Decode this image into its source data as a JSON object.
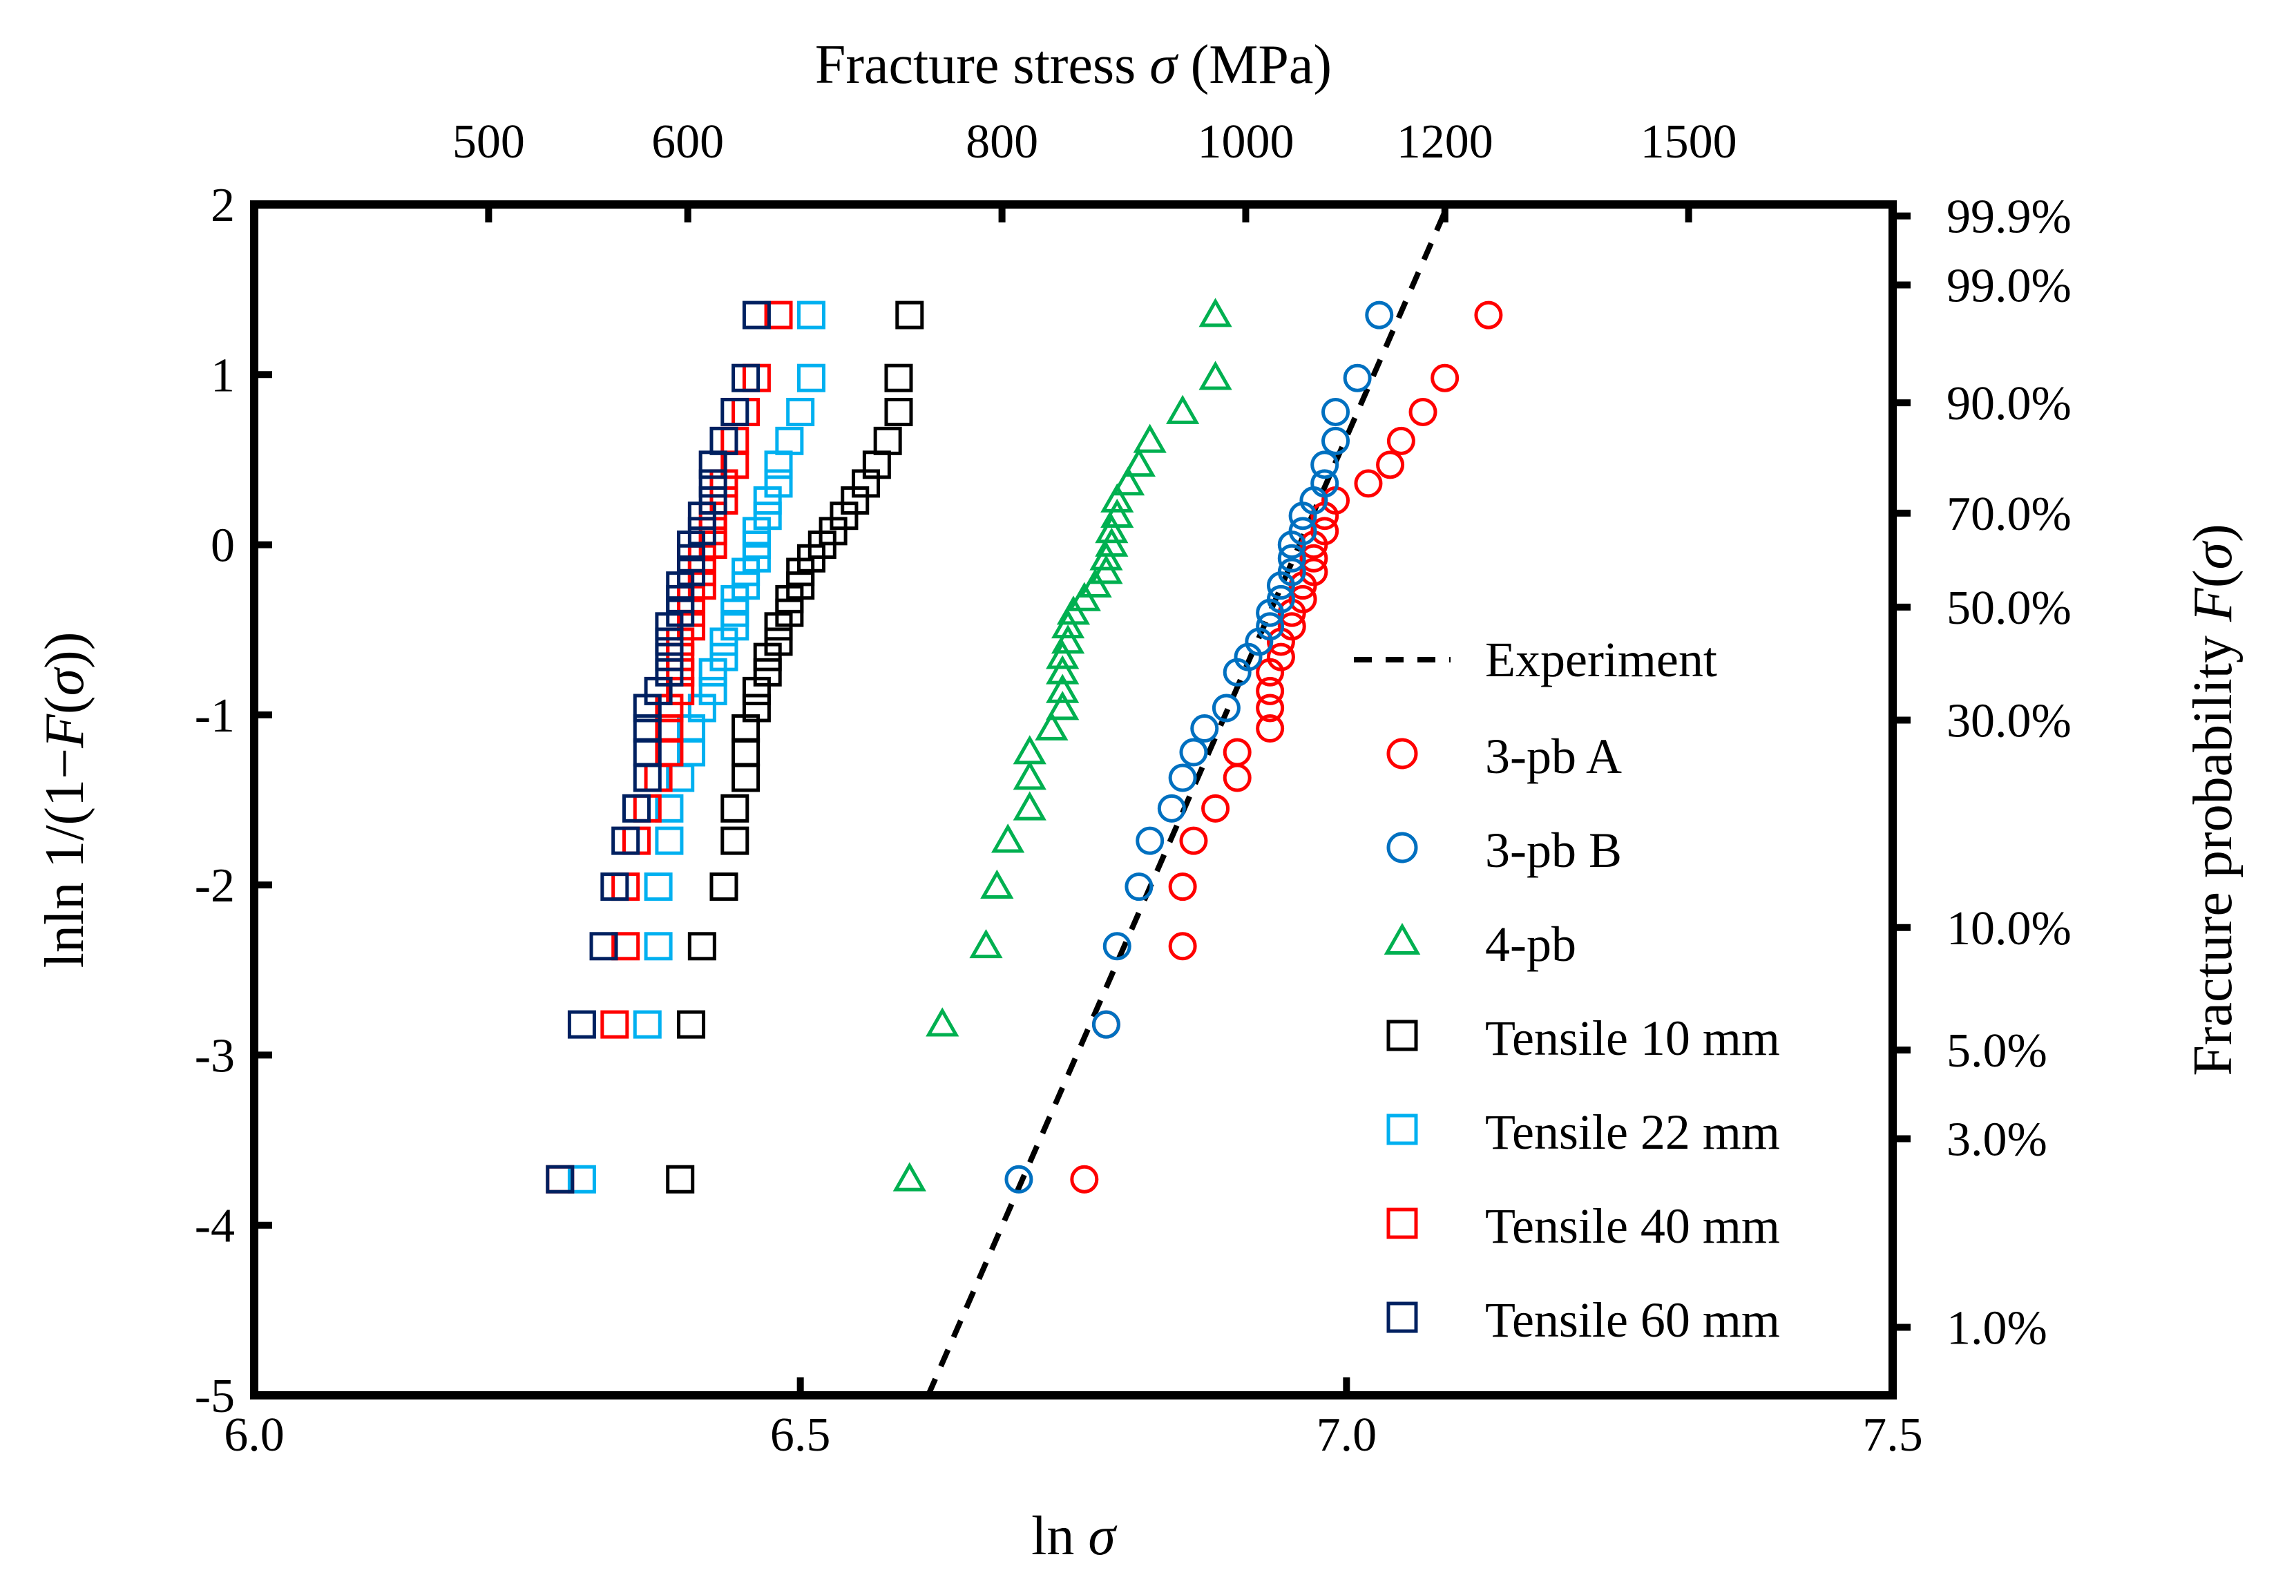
{
  "chart_data": {
    "type": "scatter",
    "xlabel": "ln σ",
    "ylabel": "lnln 1/(1−F(σ))",
    "top_xlabel": "Fracture stress σ (MPa)",
    "right_ylabel": "Fracture probability F(σ)",
    "xlim": [
      6.0,
      7.5
    ],
    "ylim": [
      -5,
      2
    ],
    "xticks": [
      "6.0",
      "6.5",
      "7.0",
      "7.5"
    ],
    "yticks": [
      "2",
      "1",
      "0",
      "-1",
      "-2",
      "-3",
      "-4",
      "-5"
    ],
    "top_ticks": [
      {
        "label": "500",
        "stress": 500
      },
      {
        "label": "600",
        "stress": 600
      },
      {
        "label": "800",
        "stress": 800
      },
      {
        "label": "1000",
        "stress": 1000
      },
      {
        "label": "1200",
        "stress": 1200
      },
      {
        "label": "1500",
        "stress": 1500
      }
    ],
    "right_ticks": [
      {
        "label": "99.9%",
        "p": 0.999
      },
      {
        "label": "99.0%",
        "p": 0.99
      },
      {
        "label": "90.0%",
        "p": 0.9
      },
      {
        "label": "70.0%",
        "p": 0.7
      },
      {
        "label": "50.0%",
        "p": 0.5
      },
      {
        "label": "30.0%",
        "p": 0.3
      },
      {
        "label": "10.0%",
        "p": 0.1
      },
      {
        "label": "5.0%",
        "p": 0.05
      },
      {
        "label": "3.0%",
        "p": 0.03
      },
      {
        "label": "1.0%",
        "p": 0.01
      }
    ],
    "grid": false,
    "legend_position": "bottom-right",
    "line_series": [
      {
        "name": "Experiment",
        "color": "#000000",
        "style": "dashed",
        "x": [
          6.617,
          7.093
        ],
        "y": [
          -5,
          2
        ]
      }
    ],
    "series": [
      {
        "name": "3-pb A",
        "marker": "circle",
        "color": "#ff0000",
        "x": [
          6.76,
          6.78,
          6.85,
          6.85,
          6.86,
          6.88,
          6.9,
          6.9,
          6.93,
          6.93,
          6.93,
          6.93,
          6.94,
          6.94,
          6.95,
          6.95,
          6.96,
          6.96,
          6.97,
          6.97,
          6.97,
          6.98,
          6.98,
          6.99,
          7.02,
          7.04,
          7.05,
          7.07,
          7.09,
          7.13
        ],
        "y": [
          -3.73,
          -2.82,
          -2.36,
          -2.01,
          -1.74,
          -1.55,
          -1.37,
          -1.22,
          -1.08,
          -0.96,
          -0.86,
          -0.75,
          -0.66,
          -0.57,
          -0.48,
          -0.4,
          -0.32,
          -0.24,
          -0.16,
          -0.08,
          0.0,
          0.08,
          0.17,
          0.26,
          0.36,
          0.47,
          0.61,
          0.78,
          0.98,
          1.35
        ]
      },
      {
        "name": "3-pb B",
        "marker": "circle",
        "color": "#0070c0",
        "x": [
          6.7,
          6.78,
          6.79,
          6.81,
          6.82,
          6.84,
          6.85,
          6.86,
          6.87,
          6.89,
          6.9,
          6.91,
          6.92,
          6.93,
          6.93,
          6.94,
          6.94,
          6.95,
          6.95,
          6.95,
          6.96,
          6.96,
          6.97,
          6.98,
          6.98,
          6.99,
          6.99,
          7.01,
          7.03
        ],
        "y": [
          -3.73,
          -2.82,
          -2.36,
          -2.01,
          -1.74,
          -1.55,
          -1.37,
          -1.22,
          -1.08,
          -0.96,
          -0.75,
          -0.66,
          -0.57,
          -0.48,
          -0.4,
          -0.32,
          -0.24,
          -0.16,
          -0.08,
          0.0,
          0.08,
          0.17,
          0.26,
          0.36,
          0.47,
          0.61,
          0.78,
          0.98,
          1.35
        ]
      },
      {
        "name": "4-pb",
        "marker": "triangle",
        "color": "#00b050",
        "x": [
          6.6,
          6.63,
          6.67,
          6.68,
          6.69,
          6.71,
          6.71,
          6.71,
          6.73,
          6.74,
          6.74,
          6.74,
          6.74,
          6.745,
          6.745,
          6.75,
          6.76,
          6.77,
          6.78,
          6.78,
          6.785,
          6.785,
          6.79,
          6.79,
          6.8,
          6.81,
          6.82,
          6.85,
          6.88,
          6.88
        ],
        "y": [
          -3.73,
          -2.82,
          -2.36,
          -2.01,
          -1.74,
          -1.55,
          -1.37,
          -1.22,
          -1.08,
          -0.96,
          -0.86,
          -0.75,
          -0.66,
          -0.57,
          -0.48,
          -0.4,
          -0.32,
          -0.24,
          -0.16,
          -0.08,
          0.0,
          0.08,
          0.17,
          0.26,
          0.36,
          0.47,
          0.61,
          0.78,
          0.98,
          1.35
        ]
      },
      {
        "name": "Tensile 10 mm",
        "marker": "square",
        "color": "#000000",
        "x": [
          6.39,
          6.4,
          6.41,
          6.43,
          6.44,
          6.44,
          6.45,
          6.45,
          6.45,
          6.46,
          6.46,
          6.47,
          6.47,
          6.48,
          6.48,
          6.49,
          6.49,
          6.5,
          6.5,
          6.51,
          6.52,
          6.53,
          6.54,
          6.55,
          6.56,
          6.57,
          6.58,
          6.59,
          6.59,
          6.6
        ],
        "y": [
          -3.73,
          -2.82,
          -2.36,
          -2.01,
          -1.74,
          -1.55,
          -1.37,
          -1.22,
          -1.08,
          -0.96,
          -0.86,
          -0.75,
          -0.66,
          -0.57,
          -0.48,
          -0.4,
          -0.32,
          -0.24,
          -0.16,
          -0.08,
          0.0,
          0.08,
          0.17,
          0.26,
          0.36,
          0.47,
          0.61,
          0.78,
          0.98,
          1.35
        ]
      },
      {
        "name": "Tensile 22 mm",
        "marker": "square",
        "color": "#00b0f0",
        "x": [
          6.3,
          6.36,
          6.37,
          6.37,
          6.38,
          6.38,
          6.39,
          6.4,
          6.4,
          6.41,
          6.42,
          6.42,
          6.43,
          6.43,
          6.44,
          6.44,
          6.44,
          6.45,
          6.45,
          6.46,
          6.46,
          6.46,
          6.47,
          6.47,
          6.48,
          6.48,
          6.49,
          6.5,
          6.51,
          6.51
        ],
        "y": [
          -3.73,
          -2.82,
          -2.36,
          -2.01,
          -1.74,
          -1.55,
          -1.37,
          -1.22,
          -1.08,
          -0.96,
          -0.86,
          -0.75,
          -0.66,
          -0.57,
          -0.48,
          -0.4,
          -0.32,
          -0.24,
          -0.16,
          -0.08,
          0.0,
          0.08,
          0.17,
          0.26,
          0.36,
          0.47,
          0.61,
          0.78,
          0.98,
          1.35
        ]
      },
      {
        "name": "Tensile 40 mm",
        "marker": "square",
        "color": "#ff0000",
        "x": [
          6.28,
          6.33,
          6.34,
          6.34,
          6.35,
          6.36,
          6.37,
          6.38,
          6.38,
          6.38,
          6.39,
          6.39,
          6.39,
          6.39,
          6.4,
          6.4,
          6.4,
          6.41,
          6.41,
          6.41,
          6.42,
          6.42,
          6.42,
          6.43,
          6.43,
          6.44,
          6.44,
          6.45,
          6.46,
          6.48
        ],
        "y": [
          -3.73,
          -2.82,
          -2.36,
          -2.01,
          -1.74,
          -1.55,
          -1.37,
          -1.22,
          -1.08,
          -0.96,
          -0.86,
          -0.75,
          -0.66,
          -0.57,
          -0.48,
          -0.4,
          -0.32,
          -0.24,
          -0.16,
          -0.08,
          0.0,
          0.08,
          0.17,
          0.26,
          0.36,
          0.47,
          0.61,
          0.78,
          0.98,
          1.35
        ]
      },
      {
        "name": "Tensile 60 mm",
        "marker": "square",
        "color": "#002060",
        "x": [
          6.28,
          6.3,
          6.32,
          6.33,
          6.34,
          6.35,
          6.36,
          6.36,
          6.36,
          6.36,
          6.37,
          6.38,
          6.38,
          6.38,
          6.38,
          6.39,
          6.39,
          6.39,
          6.4,
          6.4,
          6.4,
          6.41,
          6.41,
          6.42,
          6.42,
          6.42,
          6.43,
          6.44,
          6.45,
          6.46
        ],
        "y": [
          -3.73,
          -2.82,
          -2.36,
          -2.01,
          -1.74,
          -1.55,
          -1.37,
          -1.22,
          -1.08,
          -0.96,
          -0.86,
          -0.75,
          -0.66,
          -0.57,
          -0.48,
          -0.4,
          -0.32,
          -0.24,
          -0.16,
          -0.08,
          0.0,
          0.08,
          0.17,
          0.26,
          0.36,
          0.47,
          0.61,
          0.78,
          0.98,
          1.35
        ]
      }
    ]
  }
}
